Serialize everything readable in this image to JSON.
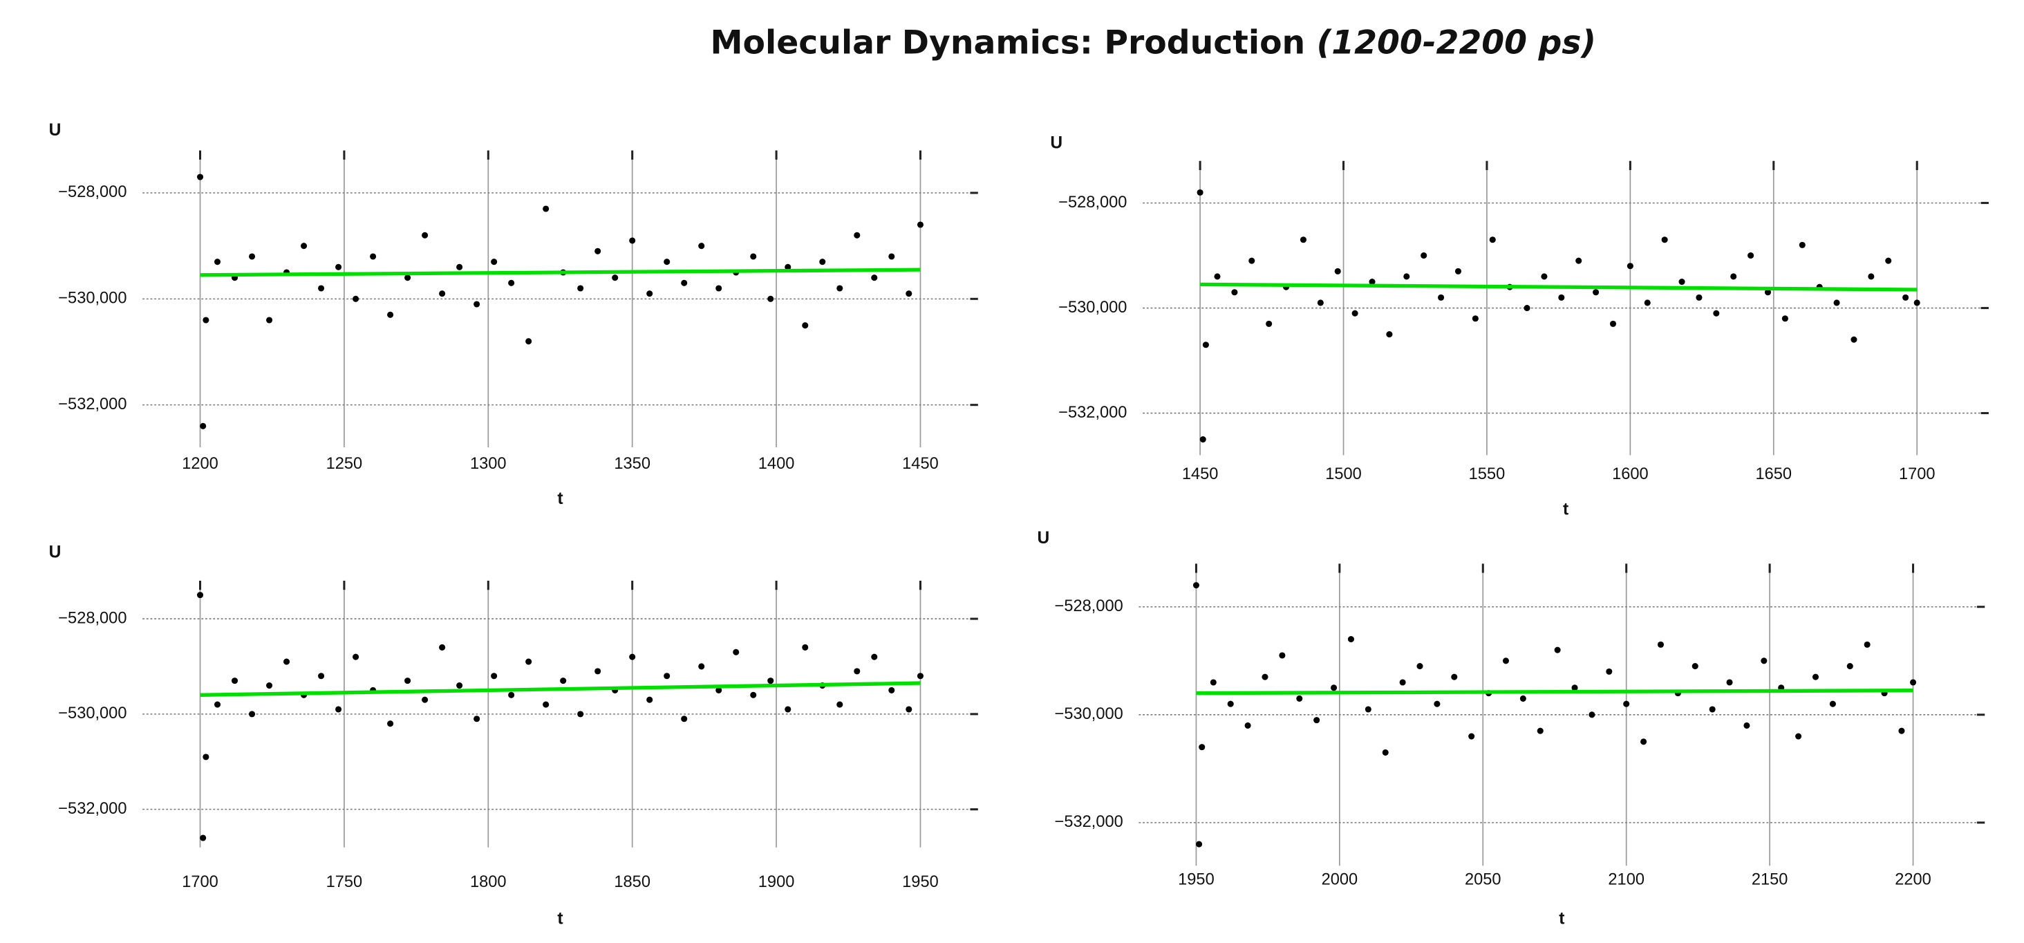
{
  "title": "Molecular Dynamics: Production",
  "title_note": "(1200-2200 ps)",
  "chart_data": [
    {
      "type": "scatter",
      "x_label": "t",
      "y_label": "U",
      "xlim": [
        1180,
        1470
      ],
      "ylim": [
        -532800,
        -527200
      ],
      "xticks": [
        1200,
        1250,
        1300,
        1350,
        1400,
        1450
      ],
      "yticks": [
        {
          "value": -528000,
          "label": "−528,000"
        },
        {
          "value": -530000,
          "label": "−530,000"
        },
        {
          "value": -532000,
          "label": "−532,000"
        }
      ],
      "grid": true,
      "series": [
        {
          "type": "scatter",
          "color": "#000000",
          "x": [
            1200,
            1201,
            1202,
            1206,
            1212,
            1218,
            1224,
            1230,
            1236,
            1242,
            1248,
            1254,
            1260,
            1266,
            1272,
            1278,
            1284,
            1290,
            1296,
            1302,
            1308,
            1314,
            1320,
            1326,
            1332,
            1338,
            1344,
            1350,
            1356,
            1362,
            1368,
            1374,
            1380,
            1386,
            1392,
            1398,
            1404,
            1410,
            1416,
            1422,
            1428,
            1434,
            1440,
            1446,
            1450
          ],
          "values": [
            -527700,
            -532400,
            -530400,
            -529300,
            -529600,
            -529200,
            -530400,
            -529500,
            -529000,
            -529800,
            -529400,
            -530000,
            -529200,
            -530300,
            -529600,
            -528800,
            -529900,
            -529400,
            -530100,
            -529300,
            -529700,
            -530800,
            -528300,
            -529500,
            -529800,
            -529100,
            -529600,
            -528900,
            -529900,
            -529300,
            -529700,
            -529000,
            -529800,
            -529500,
            -529200,
            -530000,
            -529400,
            -530500,
            -529300,
            -529800,
            -528800,
            -529600,
            -529200,
            -529900,
            -528600
          ]
        },
        {
          "type": "line",
          "color": "#00e000",
          "x": [
            1200,
            1450
          ],
          "values": [
            -529550,
            -529450
          ]
        }
      ]
    },
    {
      "type": "scatter",
      "x_label": "t",
      "y_label": "U",
      "xlim": [
        1430,
        1725
      ],
      "ylim": [
        -532800,
        -527200
      ],
      "xticks": [
        1450,
        1500,
        1550,
        1600,
        1650,
        1700
      ],
      "yticks": [
        {
          "value": -528000,
          "label": "−528,000"
        },
        {
          "value": -530000,
          "label": "−530,000"
        },
        {
          "value": -532000,
          "label": "−532,000"
        }
      ],
      "grid": true,
      "series": [
        {
          "type": "scatter",
          "color": "#000000",
          "x": [
            1450,
            1451,
            1452,
            1456,
            1462,
            1468,
            1474,
            1480,
            1486,
            1492,
            1498,
            1504,
            1510,
            1516,
            1522,
            1528,
            1534,
            1540,
            1546,
            1552,
            1558,
            1564,
            1570,
            1576,
            1582,
            1588,
            1594,
            1600,
            1606,
            1612,
            1618,
            1624,
            1630,
            1636,
            1642,
            1648,
            1654,
            1660,
            1666,
            1672,
            1678,
            1684,
            1690,
            1696,
            1700
          ],
          "values": [
            -527800,
            -532500,
            -530700,
            -529400,
            -529700,
            -529100,
            -530300,
            -529600,
            -528700,
            -529900,
            -529300,
            -530100,
            -529500,
            -530500,
            -529400,
            -529000,
            -529800,
            -529300,
            -530200,
            -528700,
            -529600,
            -530000,
            -529400,
            -529800,
            -529100,
            -529700,
            -530300,
            -529200,
            -529900,
            -528700,
            -529500,
            -529800,
            -530100,
            -529400,
            -529000,
            -529700,
            -530200,
            -528800,
            -529600,
            -529900,
            -530600,
            -529400,
            -529100,
            -529800,
            -529900
          ]
        },
        {
          "type": "line",
          "color": "#00e000",
          "x": [
            1450,
            1700
          ],
          "values": [
            -529550,
            -529650
          ]
        }
      ]
    },
    {
      "type": "scatter",
      "x_label": "t",
      "y_label": "U",
      "xlim": [
        1680,
        1970
      ],
      "ylim": [
        -532800,
        -527200
      ],
      "xticks": [
        1700,
        1750,
        1800,
        1850,
        1900,
        1950
      ],
      "yticks": [
        {
          "value": -528000,
          "label": "−528,000"
        },
        {
          "value": -530000,
          "label": "−530,000"
        },
        {
          "value": -532000,
          "label": "−532,000"
        }
      ],
      "grid": true,
      "series": [
        {
          "type": "scatter",
          "color": "#000000",
          "x": [
            1700,
            1701,
            1702,
            1706,
            1712,
            1718,
            1724,
            1730,
            1736,
            1742,
            1748,
            1754,
            1760,
            1766,
            1772,
            1778,
            1784,
            1790,
            1796,
            1802,
            1808,
            1814,
            1820,
            1826,
            1832,
            1838,
            1844,
            1850,
            1856,
            1862,
            1868,
            1874,
            1880,
            1886,
            1892,
            1898,
            1904,
            1910,
            1916,
            1922,
            1928,
            1934,
            1940,
            1946,
            1950
          ],
          "values": [
            -527500,
            -532600,
            -530900,
            -529800,
            -529300,
            -530000,
            -529400,
            -528900,
            -529600,
            -529200,
            -529900,
            -528800,
            -529500,
            -530200,
            -529300,
            -529700,
            -528600,
            -529400,
            -530100,
            -529200,
            -529600,
            -528900,
            -529800,
            -529300,
            -530000,
            -529100,
            -529500,
            -528800,
            -529700,
            -529200,
            -530100,
            -529000,
            -529500,
            -528700,
            -529600,
            -529300,
            -529900,
            -528600,
            -529400,
            -529800,
            -529100,
            -528800,
            -529500,
            -529900,
            -529200
          ]
        },
        {
          "type": "line",
          "color": "#00e000",
          "x": [
            1700,
            1950
          ],
          "values": [
            -529600,
            -529350
          ]
        }
      ]
    },
    {
      "type": "scatter",
      "x_label": "t",
      "y_label": "U",
      "xlim": [
        1930,
        2225
      ],
      "ylim": [
        -532800,
        -527200
      ],
      "xticks": [
        1950,
        2000,
        2050,
        2100,
        2150,
        2200
      ],
      "yticks": [
        {
          "value": -528000,
          "label": "−528,000"
        },
        {
          "value": -530000,
          "label": "−530,000"
        },
        {
          "value": -532000,
          "label": "−532,000"
        }
      ],
      "grid": true,
      "series": [
        {
          "type": "scatter",
          "color": "#000000",
          "x": [
            1950,
            1951,
            1952,
            1956,
            1962,
            1968,
            1974,
            1980,
            1986,
            1992,
            1998,
            2004,
            2010,
            2016,
            2022,
            2028,
            2034,
            2040,
            2046,
            2052,
            2058,
            2064,
            2070,
            2076,
            2082,
            2088,
            2094,
            2100,
            2106,
            2112,
            2118,
            2124,
            2130,
            2136,
            2142,
            2148,
            2154,
            2160,
            2166,
            2172,
            2178,
            2184,
            2190,
            2196,
            2200
          ],
          "values": [
            -527600,
            -532400,
            -530600,
            -529400,
            -529800,
            -530200,
            -529300,
            -528900,
            -529700,
            -530100,
            -529500,
            -528600,
            -529900,
            -530700,
            -529400,
            -529100,
            -529800,
            -529300,
            -530400,
            -529600,
            -529000,
            -529700,
            -530300,
            -528800,
            -529500,
            -530000,
            -529200,
            -529800,
            -530500,
            -528700,
            -529600,
            -529100,
            -529900,
            -529400,
            -530200,
            -529000,
            -529500,
            -530400,
            -529300,
            -529800,
            -529100,
            -528700,
            -529600,
            -530300,
            -529400
          ]
        },
        {
          "type": "line",
          "color": "#00e000",
          "x": [
            1950,
            2200
          ],
          "values": [
            -529600,
            -529550
          ]
        }
      ]
    }
  ]
}
